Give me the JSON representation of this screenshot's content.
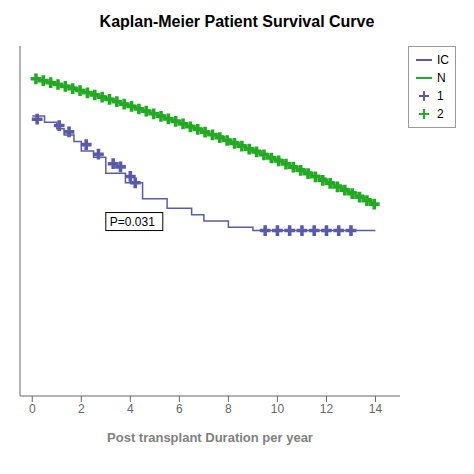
{
  "chart_data": {
    "type": "step",
    "title": "Kaplan-Meier Patient Survival Curve",
    "x_label": "Post transplant Duration per year",
    "xlim": [
      -0.5,
      15
    ],
    "xticks": [
      0,
      2,
      4,
      6,
      8,
      10,
      12,
      14
    ],
    "ylim": [
      0.0,
      1.1
    ],
    "yticks": [],
    "tick_labels": "x",
    "legend": "right",
    "series": [
      {
        "name": "IC",
        "type": "line",
        "color": "#5a5aaa",
        "x": [
          0,
          0.5,
          1.0,
          1.3,
          1.7,
          2.0,
          2.5,
          3.0,
          3.8,
          4.5,
          5.5,
          6.5,
          7.0,
          8.0,
          9.0,
          14.0
        ],
        "values": [
          0.88,
          0.86,
          0.84,
          0.82,
          0.8,
          0.77,
          0.75,
          0.7,
          0.67,
          0.62,
          0.59,
          0.57,
          0.55,
          0.53,
          0.52,
          0.52
        ]
      },
      {
        "name": "N",
        "type": "line",
        "color": "#22aa22",
        "x": [
          0,
          0.3,
          0.6,
          0.9,
          1.2,
          1.5,
          1.8,
          2.1,
          2.4,
          2.7,
          3.0,
          3.3,
          3.6,
          3.9,
          4.2,
          4.5,
          4.8,
          5.1,
          5.4,
          5.7,
          6.0,
          6.3,
          6.6,
          6.9,
          7.2,
          7.5,
          7.8,
          8.1,
          8.4,
          8.7,
          9.0,
          9.3,
          9.6,
          9.9,
          10.2,
          10.5,
          10.8,
          11.1,
          11.4,
          11.7,
          12.0,
          12.3,
          12.6,
          12.9,
          13.2,
          13.5,
          13.8,
          14.0
        ],
        "values": [
          1.0,
          0.995,
          0.988,
          0.982,
          0.976,
          0.97,
          0.963,
          0.957,
          0.95,
          0.943,
          0.936,
          0.929,
          0.921,
          0.914,
          0.906,
          0.899,
          0.891,
          0.883,
          0.875,
          0.867,
          0.859,
          0.851,
          0.842,
          0.834,
          0.825,
          0.817,
          0.808,
          0.799,
          0.79,
          0.781,
          0.772,
          0.763,
          0.753,
          0.744,
          0.734,
          0.724,
          0.714,
          0.704,
          0.694,
          0.684,
          0.673,
          0.663,
          0.652,
          0.642,
          0.631,
          0.62,
          0.609,
          0.598
        ]
      },
      {
        "name": "1",
        "type": "scatter",
        "marker": "plus",
        "color": "#5a5aaa",
        "x": [
          0.2,
          1.1,
          1.5,
          2.2,
          2.7,
          3.3,
          3.6,
          4.0,
          4.2,
          9.5,
          10.0,
          10.5,
          11.0,
          11.5,
          12.0,
          12.5,
          13.0
        ],
        "values": [
          0.87,
          0.85,
          0.83,
          0.79,
          0.76,
          0.73,
          0.72,
          0.69,
          0.67,
          0.52,
          0.52,
          0.52,
          0.52,
          0.52,
          0.52,
          0.52,
          0.52
        ]
      },
      {
        "name": "2",
        "type": "scatter",
        "marker": "plus",
        "color": "#22aa22",
        "x": [
          0.15,
          0.45,
          0.75,
          1.05,
          1.35,
          1.65,
          1.95,
          2.25,
          2.55,
          2.85,
          3.15,
          3.45,
          3.75,
          4.05,
          4.35,
          4.65,
          4.95,
          5.25,
          5.55,
          5.85,
          6.15,
          6.45,
          6.75,
          7.05,
          7.35,
          7.65,
          7.95,
          8.25,
          8.55,
          8.85,
          9.15,
          9.45,
          9.75,
          10.05,
          10.35,
          10.65,
          10.95,
          11.25,
          11.55,
          11.85,
          12.15,
          12.45,
          12.75,
          13.05,
          13.35,
          13.65,
          13.95
        ],
        "values": [
          0.997,
          0.991,
          0.985,
          0.979,
          0.973,
          0.966,
          0.96,
          0.953,
          0.946,
          0.939,
          0.932,
          0.925,
          0.917,
          0.91,
          0.902,
          0.895,
          0.887,
          0.879,
          0.871,
          0.863,
          0.855,
          0.846,
          0.838,
          0.829,
          0.821,
          0.812,
          0.803,
          0.794,
          0.785,
          0.776,
          0.767,
          0.758,
          0.748,
          0.739,
          0.729,
          0.719,
          0.709,
          0.699,
          0.689,
          0.678,
          0.668,
          0.657,
          0.647,
          0.636,
          0.625,
          0.614,
          0.603
        ]
      }
    ],
    "annotations": [
      {
        "text": "P=0.031",
        "x": 3.0,
        "y": 0.52
      }
    ]
  }
}
